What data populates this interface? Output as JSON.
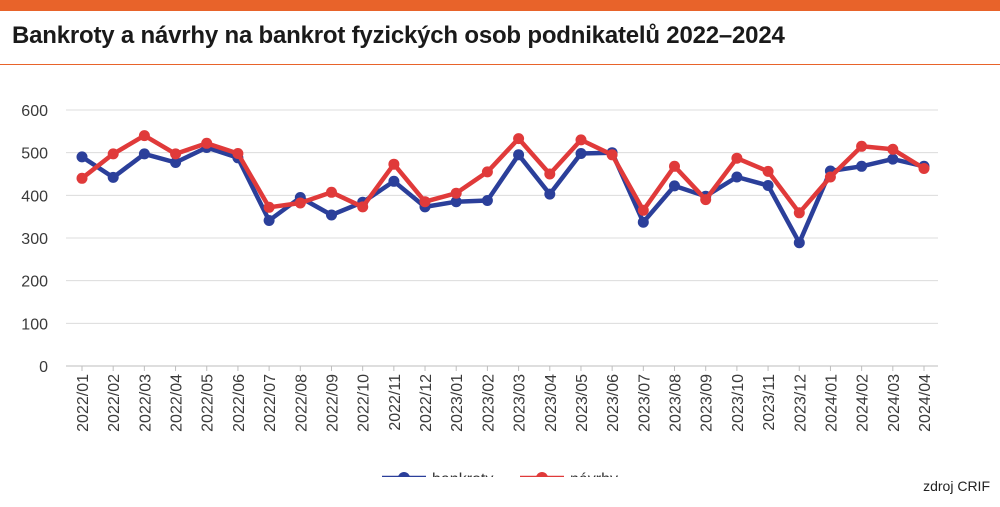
{
  "header": {
    "title": "Bankroty a návrhy na bankrot fyzických osob podnikatelů 2022–2024",
    "accent_color": "#e8632a"
  },
  "footer": {
    "source": "zdroj CRIF"
  },
  "chart_data": {
    "type": "line",
    "title": "Bankroty a návrhy na bankrot fyzických osob podnikatelů 2022–2024",
    "xlabel": "",
    "ylabel": "",
    "ylim": [
      0,
      600
    ],
    "yticks": [
      0,
      100,
      200,
      300,
      400,
      500,
      600
    ],
    "grid": true,
    "legend_position": "bottom",
    "categories": [
      "2022/01",
      "2022/02",
      "2022/03",
      "2022/04",
      "2022/05",
      "2022/06",
      "2022/07",
      "2022/08",
      "2022/09",
      "2022/10",
      "2022/11",
      "2022/12",
      "2023/01",
      "2023/02",
      "2023/03",
      "2023/04",
      "2023/05",
      "2023/06",
      "2023/07",
      "2023/08",
      "2023/09",
      "2023/10",
      "2023/11",
      "2023/12",
      "2024/01",
      "2024/02",
      "2024/03",
      "2024/04"
    ],
    "series": [
      {
        "name": "bankroty",
        "color": "#2b3f9a",
        "values": [
          490,
          442,
          497,
          477,
          512,
          488,
          341,
          395,
          354,
          384,
          433,
          373,
          385,
          388,
          495,
          403,
          498,
          500,
          337,
          422,
          398,
          443,
          423,
          289,
          457,
          468,
          485,
          468
        ]
      },
      {
        "name": "návrhy",
        "color": "#e03a3a",
        "values": [
          440,
          497,
          540,
          497,
          522,
          498,
          372,
          382,
          407,
          373,
          473,
          385,
          405,
          455,
          533,
          450,
          530,
          495,
          365,
          468,
          390,
          487,
          456,
          359,
          443,
          515,
          508,
          463
        ]
      }
    ]
  }
}
